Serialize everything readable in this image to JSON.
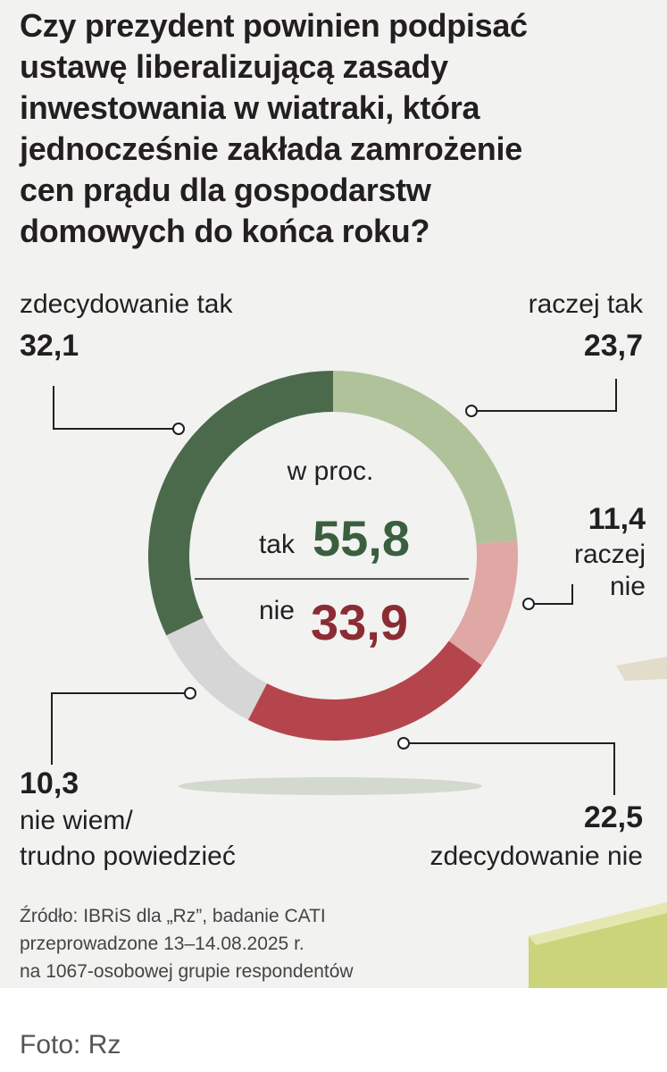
{
  "title_lines": [
    "Czy prezydent powinien podpisać",
    "ustawę liberalizującą zasady",
    "inwestowania w wiatraki, która",
    "jednocześnie zakłada zamrożenie",
    "cen prądu dla gospodarstw",
    "domowych do końca roku?"
  ],
  "center": {
    "unit": "w proc.",
    "yes_label": "tak",
    "yes_value": "55,8",
    "no_label": "nie",
    "no_value": "33,9"
  },
  "labels": {
    "definitely_yes": {
      "name": "zdecydowanie tak",
      "value": "32,1"
    },
    "rather_yes": {
      "name": "raczej tak",
      "value": "23,7"
    },
    "rather_no": {
      "name_line1": "raczej",
      "name_line2": "nie",
      "value": "11,4"
    },
    "definitely_no": {
      "name": "zdecydowanie nie",
      "value": "22,5"
    },
    "dont_know": {
      "name_line1": "nie wiem/",
      "name_line2": "trudno powiedzieć",
      "value": "10,3"
    }
  },
  "source_lines": [
    "Źródło: IBRiS dla „Rz”, badanie CATI",
    "przeprowadzone 13–14.08.2025 r.",
    "na 1067-osobowej grupie respondentów"
  ],
  "photo_credit": "Foto: Rz",
  "colors": {
    "definitely_yes": "#4b6a4b",
    "rather_yes": "#b0c29a",
    "rather_no": "#dfa8a5",
    "definitely_no": "#b5454c",
    "dont_know": "#d6d6d6",
    "yes_total": "#3a5f3e",
    "no_total": "#8b2c34"
  },
  "chart_data": {
    "type": "pie",
    "donut": true,
    "start": "top, clockwise",
    "slices": [
      {
        "label": "raczej tak",
        "value": 23.7
      },
      {
        "label": "raczej nie",
        "value": 11.4
      },
      {
        "label": "zdecydowanie nie",
        "value": 22.5
      },
      {
        "label": "nie wiem/trudno powiedzieć",
        "value": 10.3
      },
      {
        "label": "zdecydowanie tak",
        "value": 32.1
      }
    ],
    "totals": {
      "tak": 55.8,
      "nie": 33.9
    }
  }
}
